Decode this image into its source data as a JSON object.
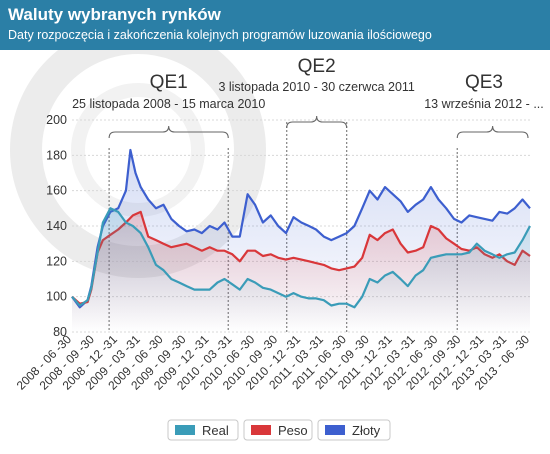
{
  "header": {
    "title": "Waluty wybranych rynków",
    "subtitle": "Daty rozpoczęcia i zakończenia kolejnych programów luzowania ilościowego"
  },
  "colors": {
    "header_bg": "#2b7fa6",
    "real": "#3a9cb8",
    "peso": "#d9373a",
    "zloty": "#3d5fcf"
  },
  "chart_data": {
    "type": "line",
    "ylim": [
      80,
      200
    ],
    "yticks": [
      80,
      100,
      120,
      140,
      160,
      180,
      200
    ],
    "xlim": [
      "2008-06-30",
      "2013-06-30"
    ],
    "x_ticks": [
      "2008 - 06 -30",
      "2008 - 09 -30",
      "2008 - 12 -31",
      "2009 - 03 -31",
      "2009 - 06 -30",
      "2009 - 09 -30",
      "2009 - 12 -31",
      "2010 - 03 -31",
      "2010 - 06 -30",
      "2010 - 09 -30",
      "2010 - 12 -31",
      "2011 - 03 -31",
      "2011 - 06 -30",
      "2011 - 09 -30",
      "2011 - 12 -31",
      "2012 - 03 -31",
      "2012 - 06 -30",
      "2012 - 09 -30",
      "2012 - 12 -31",
      "2013 - 03 -31",
      "2013 - 06 -30"
    ],
    "grid": true,
    "legend": "bottom",
    "annotations": [
      {
        "name": "QE1",
        "dates": "25 listopada 2008 - 15 marca 2010",
        "start": "2008-11-25",
        "end": "2010-03-15"
      },
      {
        "name": "QE2",
        "dates": "3 listopada 2010 - 30 czerwca 2011",
        "start": "2010-11-03",
        "end": "2011-06-30"
      },
      {
        "name": "QE3",
        "dates": "13 września 2012 - ...",
        "start": "2012-09-13",
        "end": "2013-06-30"
      }
    ],
    "series": [
      {
        "name": "Real",
        "color": "#3a9cb8",
        "points": [
          [
            "2008-06-30",
            100
          ],
          [
            "2008-07-31",
            95
          ],
          [
            "2008-08-31",
            98
          ],
          [
            "2008-09-15",
            105
          ],
          [
            "2008-10-10",
            125
          ],
          [
            "2008-10-31",
            142
          ],
          [
            "2008-11-30",
            150
          ],
          [
            "2008-12-31",
            148
          ],
          [
            "2009-01-31",
            142
          ],
          [
            "2009-02-28",
            140
          ],
          [
            "2009-03-31",
            136
          ],
          [
            "2009-04-30",
            128
          ],
          [
            "2009-05-31",
            118
          ],
          [
            "2009-06-30",
            115
          ],
          [
            "2009-07-31",
            110
          ],
          [
            "2009-08-31",
            108
          ],
          [
            "2009-09-30",
            106
          ],
          [
            "2009-10-31",
            104
          ],
          [
            "2009-11-30",
            104
          ],
          [
            "2009-12-31",
            104
          ],
          [
            "2010-01-31",
            108
          ],
          [
            "2010-02-28",
            110
          ],
          [
            "2010-03-31",
            107
          ],
          [
            "2010-04-30",
            104
          ],
          [
            "2010-05-31",
            110
          ],
          [
            "2010-06-30",
            108
          ],
          [
            "2010-07-31",
            105
          ],
          [
            "2010-08-31",
            104
          ],
          [
            "2010-09-30",
            102
          ],
          [
            "2010-10-31",
            100
          ],
          [
            "2010-11-30",
            102
          ],
          [
            "2010-12-31",
            100
          ],
          [
            "2011-01-31",
            99
          ],
          [
            "2011-02-28",
            99
          ],
          [
            "2011-03-31",
            98
          ],
          [
            "2011-04-30",
            95
          ],
          [
            "2011-05-31",
            96
          ],
          [
            "2011-06-30",
            96
          ],
          [
            "2011-07-31",
            94
          ],
          [
            "2011-08-31",
            100
          ],
          [
            "2011-09-30",
            110
          ],
          [
            "2011-10-31",
            108
          ],
          [
            "2011-11-30",
            112
          ],
          [
            "2011-12-31",
            114
          ],
          [
            "2012-01-31",
            110
          ],
          [
            "2012-02-29",
            106
          ],
          [
            "2012-03-31",
            112
          ],
          [
            "2012-04-30",
            115
          ],
          [
            "2012-05-31",
            122
          ],
          [
            "2012-06-30",
            123
          ],
          [
            "2012-07-31",
            124
          ],
          [
            "2012-08-31",
            124
          ],
          [
            "2012-09-30",
            124
          ],
          [
            "2012-10-31",
            125
          ],
          [
            "2012-11-30",
            130
          ],
          [
            "2012-12-31",
            126
          ],
          [
            "2013-01-31",
            124
          ],
          [
            "2013-02-28",
            122
          ],
          [
            "2013-03-31",
            124
          ],
          [
            "2013-04-30",
            125
          ],
          [
            "2013-05-31",
            132
          ],
          [
            "2013-06-30",
            140
          ]
        ]
      },
      {
        "name": "Peso",
        "color": "#d9373a",
        "points": [
          [
            "2008-06-30",
            100
          ],
          [
            "2008-07-31",
            96
          ],
          [
            "2008-08-31",
            97
          ],
          [
            "2008-09-15",
            104
          ],
          [
            "2008-10-10",
            125
          ],
          [
            "2008-10-31",
            132
          ],
          [
            "2008-11-30",
            135
          ],
          [
            "2008-12-31",
            138
          ],
          [
            "2009-01-31",
            142
          ],
          [
            "2009-02-28",
            146
          ],
          [
            "2009-03-31",
            148
          ],
          [
            "2009-04-30",
            134
          ],
          [
            "2009-05-31",
            132
          ],
          [
            "2009-06-30",
            130
          ],
          [
            "2009-07-31",
            128
          ],
          [
            "2009-08-31",
            129
          ],
          [
            "2009-09-30",
            130
          ],
          [
            "2009-10-31",
            128
          ],
          [
            "2009-11-30",
            126
          ],
          [
            "2009-12-31",
            128
          ],
          [
            "2010-01-31",
            126
          ],
          [
            "2010-02-28",
            126
          ],
          [
            "2010-03-31",
            124
          ],
          [
            "2010-04-30",
            120
          ],
          [
            "2010-05-31",
            126
          ],
          [
            "2010-06-30",
            126
          ],
          [
            "2010-07-31",
            123
          ],
          [
            "2010-08-31",
            124
          ],
          [
            "2010-09-30",
            122
          ],
          [
            "2010-10-31",
            121
          ],
          [
            "2010-11-30",
            122
          ],
          [
            "2010-12-31",
            121
          ],
          [
            "2011-01-31",
            120
          ],
          [
            "2011-02-28",
            119
          ],
          [
            "2011-03-31",
            118
          ],
          [
            "2011-04-30",
            116
          ],
          [
            "2011-05-31",
            115
          ],
          [
            "2011-06-30",
            116
          ],
          [
            "2011-07-31",
            117
          ],
          [
            "2011-08-31",
            122
          ],
          [
            "2011-09-30",
            135
          ],
          [
            "2011-10-31",
            132
          ],
          [
            "2011-11-30",
            136
          ],
          [
            "2011-12-31",
            138
          ],
          [
            "2012-01-31",
            130
          ],
          [
            "2012-02-29",
            125
          ],
          [
            "2012-03-31",
            126
          ],
          [
            "2012-04-30",
            128
          ],
          [
            "2012-05-31",
            140
          ],
          [
            "2012-06-30",
            138
          ],
          [
            "2012-07-31",
            133
          ],
          [
            "2012-08-31",
            130
          ],
          [
            "2012-09-30",
            127
          ],
          [
            "2012-10-31",
            126
          ],
          [
            "2012-11-30",
            128
          ],
          [
            "2012-12-31",
            124
          ],
          [
            "2013-01-31",
            122
          ],
          [
            "2013-02-28",
            124
          ],
          [
            "2013-03-31",
            120
          ],
          [
            "2013-04-30",
            118
          ],
          [
            "2013-05-31",
            126
          ],
          [
            "2013-06-30",
            123
          ]
        ]
      },
      {
        "name": "Złoty",
        "color": "#3d5fcf",
        "points": [
          [
            "2008-06-30",
            100
          ],
          [
            "2008-07-31",
            94
          ],
          [
            "2008-08-31",
            98
          ],
          [
            "2008-09-15",
            106
          ],
          [
            "2008-10-10",
            128
          ],
          [
            "2008-10-31",
            140
          ],
          [
            "2008-11-30",
            148
          ],
          [
            "2008-12-31",
            150
          ],
          [
            "2009-01-31",
            160
          ],
          [
            "2009-02-18",
            183
          ],
          [
            "2009-03-10",
            170
          ],
          [
            "2009-03-31",
            162
          ],
          [
            "2009-04-30",
            155
          ],
          [
            "2009-05-31",
            150
          ],
          [
            "2009-06-30",
            152
          ],
          [
            "2009-07-31",
            144
          ],
          [
            "2009-08-31",
            140
          ],
          [
            "2009-09-30",
            137
          ],
          [
            "2009-10-31",
            138
          ],
          [
            "2009-11-30",
            136
          ],
          [
            "2009-12-31",
            140
          ],
          [
            "2010-01-31",
            138
          ],
          [
            "2010-02-28",
            142
          ],
          [
            "2010-03-31",
            134
          ],
          [
            "2010-04-30",
            134
          ],
          [
            "2010-05-31",
            158
          ],
          [
            "2010-06-30",
            152
          ],
          [
            "2010-07-31",
            142
          ],
          [
            "2010-08-31",
            146
          ],
          [
            "2010-09-30",
            140
          ],
          [
            "2010-10-31",
            136
          ],
          [
            "2010-11-30",
            145
          ],
          [
            "2010-12-31",
            142
          ],
          [
            "2011-01-31",
            140
          ],
          [
            "2011-02-28",
            138
          ],
          [
            "2011-03-31",
            134
          ],
          [
            "2011-04-30",
            132
          ],
          [
            "2011-05-31",
            134
          ],
          [
            "2011-06-30",
            136
          ],
          [
            "2011-07-31",
            140
          ],
          [
            "2011-08-31",
            150
          ],
          [
            "2011-09-30",
            160
          ],
          [
            "2011-10-31",
            155
          ],
          [
            "2011-11-30",
            162
          ],
          [
            "2011-12-31",
            158
          ],
          [
            "2012-01-31",
            154
          ],
          [
            "2012-02-29",
            148
          ],
          [
            "2012-03-31",
            152
          ],
          [
            "2012-04-30",
            155
          ],
          [
            "2012-05-31",
            162
          ],
          [
            "2012-06-30",
            155
          ],
          [
            "2012-07-31",
            150
          ],
          [
            "2012-08-31",
            144
          ],
          [
            "2012-09-30",
            142
          ],
          [
            "2012-10-31",
            146
          ],
          [
            "2012-11-30",
            145
          ],
          [
            "2012-12-31",
            144
          ],
          [
            "2013-01-31",
            143
          ],
          [
            "2013-02-28",
            148
          ],
          [
            "2013-03-31",
            147
          ],
          [
            "2013-04-30",
            150
          ],
          [
            "2013-05-31",
            155
          ],
          [
            "2013-06-30",
            150
          ]
        ]
      }
    ]
  }
}
